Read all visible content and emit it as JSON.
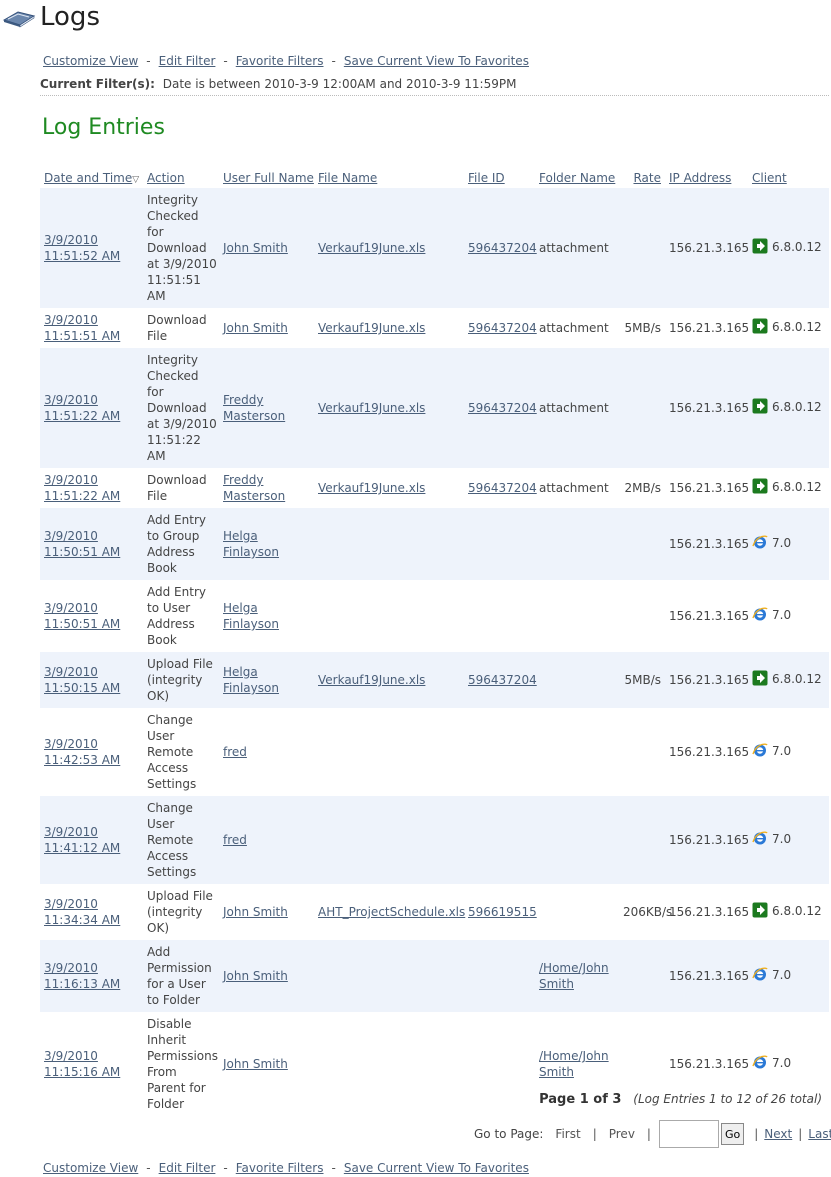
{
  "page": {
    "title": "Logs"
  },
  "links": {
    "customize_view": "Customize View",
    "edit_filter": "Edit Filter",
    "favorite_filters": "Favorite Filters",
    "save_view": "Save Current View To Favorites",
    "separator": "-"
  },
  "filter": {
    "label": "Current Filter(s):",
    "value": "Date is between 2010-3-9 12:00AM and 2010-3-9 11:59PM"
  },
  "section_title": "Log Entries",
  "table": {
    "headers": {
      "date": "Date and Time",
      "action": "Action",
      "user": "User Full Name",
      "file": "File Name",
      "fileid": "File ID",
      "folder": "Folder Name",
      "rate": "Rate",
      "ip": "IP Address",
      "client": "Client"
    },
    "sort_indicator": "▽",
    "rows": [
      {
        "date": "3/9/2010 11:51:52 AM",
        "action": "Integrity Checked for Download at 3/9/2010 11:51:51 AM",
        "user": "John Smith",
        "file": "Verkauf19June.xls",
        "fileid": "596437204",
        "folder": "attachment",
        "folder_link": false,
        "rate": "",
        "ip": "156.21.3.165",
        "client_icon": "green-arrow-icon",
        "client": "6.8.0.12"
      },
      {
        "date": "3/9/2010 11:51:51 AM",
        "action": "Download File",
        "user": "John Smith",
        "file": "Verkauf19June.xls",
        "fileid": "596437204",
        "folder": "attachment",
        "folder_link": false,
        "rate": "5MB/s",
        "ip": "156.21.3.165",
        "client_icon": "green-arrow-icon",
        "client": "6.8.0.12"
      },
      {
        "date": "3/9/2010 11:51:22 AM",
        "action": "Integrity Checked for Download at 3/9/2010 11:51:22 AM",
        "user": "Freddy Masterson",
        "file": "Verkauf19June.xls",
        "fileid": "596437204",
        "folder": "attachment",
        "folder_link": false,
        "rate": "",
        "ip": "156.21.3.165",
        "client_icon": "green-arrow-icon",
        "client": "6.8.0.12"
      },
      {
        "date": "3/9/2010 11:51:22 AM",
        "action": "Download File",
        "user": "Freddy Masterson",
        "file": "Verkauf19June.xls",
        "fileid": "596437204",
        "folder": "attachment",
        "folder_link": false,
        "rate": "2MB/s",
        "ip": "156.21.3.165",
        "client_icon": "green-arrow-icon",
        "client": "6.8.0.12"
      },
      {
        "date": "3/9/2010 11:50:51 AM",
        "action": "Add Entry to Group Address Book",
        "user": "Helga Finlayson",
        "file": "",
        "fileid": "",
        "folder": "",
        "folder_link": false,
        "rate": "",
        "ip": "156.21.3.165",
        "client_icon": "ie-icon",
        "client": "7.0"
      },
      {
        "date": "3/9/2010 11:50:51 AM",
        "action": "Add Entry to User Address Book",
        "user": "Helga Finlayson",
        "file": "",
        "fileid": "",
        "folder": "",
        "folder_link": false,
        "rate": "",
        "ip": "156.21.3.165",
        "client_icon": "ie-icon",
        "client": "7.0"
      },
      {
        "date": "3/9/2010 11:50:15 AM",
        "action": "Upload File (integrity OK)",
        "user": "Helga Finlayson",
        "file": "Verkauf19June.xls",
        "fileid": "596437204",
        "folder": "",
        "folder_link": false,
        "rate": "5MB/s",
        "ip": "156.21.3.165",
        "client_icon": "green-arrow-icon",
        "client": "6.8.0.12"
      },
      {
        "date": "3/9/2010 11:42:53 AM",
        "action": "Change User Remote Access Settings",
        "user": "fred",
        "file": "",
        "fileid": "",
        "folder": "",
        "folder_link": false,
        "rate": "",
        "ip": "156.21.3.165",
        "client_icon": "ie-icon",
        "client": "7.0"
      },
      {
        "date": "3/9/2010 11:41:12 AM",
        "action": "Change User Remote Access Settings",
        "user": "fred",
        "file": "",
        "fileid": "",
        "folder": "",
        "folder_link": false,
        "rate": "",
        "ip": "156.21.3.165",
        "client_icon": "ie-icon",
        "client": "7.0"
      },
      {
        "date": "3/9/2010 11:34:34 AM",
        "action": "Upload File (integrity OK)",
        "user": "John Smith",
        "file": "AHT_ProjectSchedule.xls",
        "fileid": "596619515",
        "folder": "",
        "folder_link": false,
        "rate": "206KB/s",
        "ip": "156.21.3.165",
        "client_icon": "green-arrow-icon",
        "client": "6.8.0.12"
      },
      {
        "date": "3/9/2010 11:16:13 AM",
        "action": "Add Permission for a User to Folder",
        "user": "John Smith",
        "file": "",
        "fileid": "",
        "folder": "/Home/John Smith",
        "folder_link": true,
        "rate": "",
        "ip": "156.21.3.165",
        "client_icon": "ie-icon",
        "client": "7.0"
      },
      {
        "date": "3/9/2010 11:15:16 AM",
        "action": "Disable Inherit Permissions From Parent for Folder",
        "user": "John Smith",
        "file": "",
        "fileid": "",
        "folder": "/Home/John Smith",
        "folder_link": true,
        "rate": "",
        "ip": "156.21.3.165",
        "client_icon": "ie-icon",
        "client": "7.0"
      }
    ]
  },
  "pager": {
    "page_text": "Page 1 of 3",
    "entries_text": "(Log Entries 1 to 12 of 26 total)",
    "goto_label": "Go to Page:",
    "first": "First",
    "prev": "Prev",
    "go": "Go",
    "next": "Next",
    "last": "Last",
    "bar": "|",
    "input_value": ""
  },
  "colors": {
    "accent_green": "#1f8a22",
    "row_stripe": "#eef3fb",
    "link": "#4a5f7a"
  }
}
